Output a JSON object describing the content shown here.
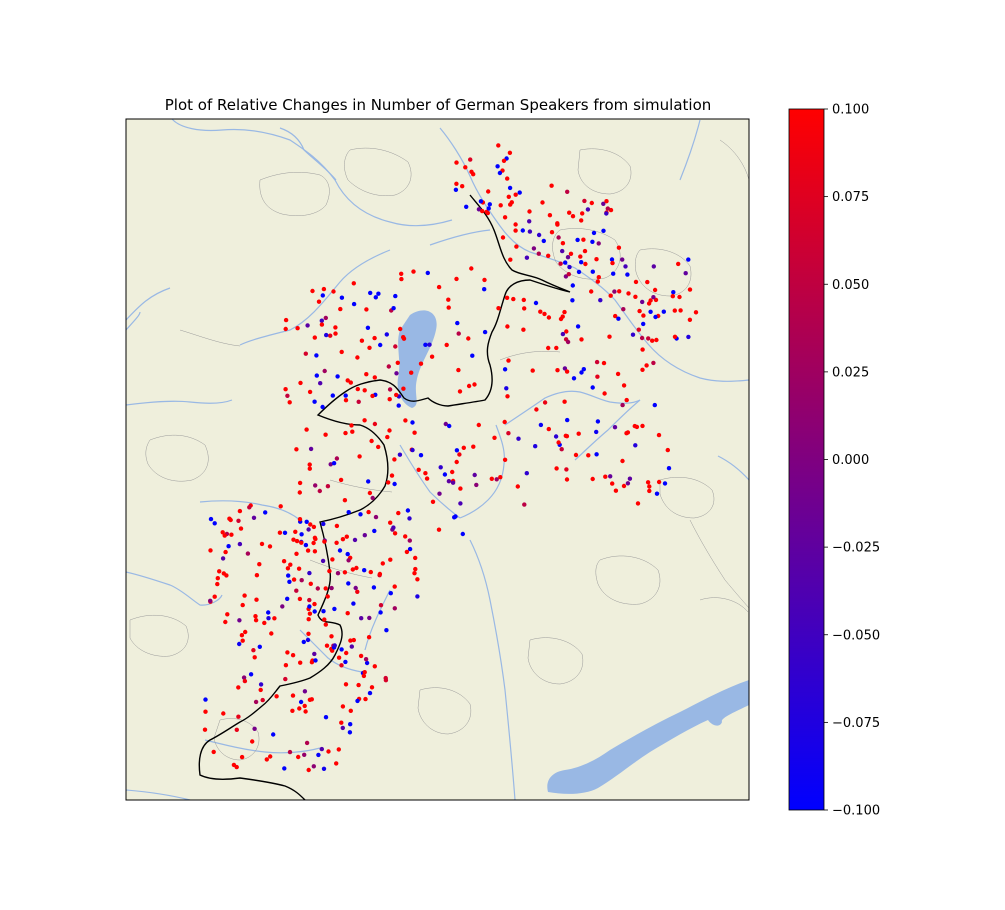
{
  "title": "Plot of Relative Changes in Number of German Speakers from simulation",
  "colors": {
    "land": "#efefdc",
    "water": "#99b8e4",
    "border": "#000000",
    "admin": "#888888",
    "frame": "#000000",
    "low": "#0000ff",
    "mid": "#7f0080",
    "high": "#ff0000"
  },
  "colorbar": {
    "min": -0.1,
    "max": 0.1,
    "ticks": [
      "0.100",
      "0.075",
      "0.050",
      "0.025",
      "0.000",
      "−0.025",
      "−0.050",
      "−0.075",
      "−0.100"
    ],
    "tick_values": [
      0.1,
      0.075,
      0.05,
      0.025,
      0.0,
      -0.025,
      -0.05,
      -0.075,
      -0.1
    ]
  },
  "chart_data": {
    "type": "scatter",
    "title": "Plot of Relative Changes in Number of German Speakers from simulation",
    "value_range": [
      -0.1,
      0.1
    ],
    "point_count": 650,
    "colormap": "blue-to-red",
    "note_values": "relative change per location; blue = -0.1, red = +0.1"
  }
}
